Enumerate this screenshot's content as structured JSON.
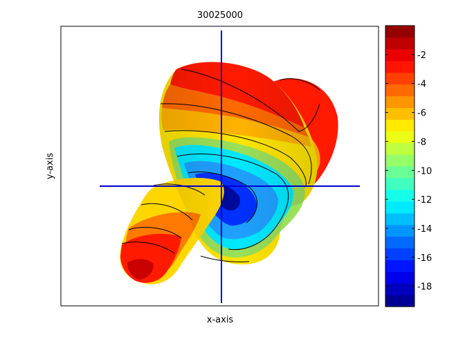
{
  "chart_data": {
    "type": "surface-3d",
    "title": "30025000",
    "xlabel": "x-axis",
    "ylabel": "y-axis",
    "grid": false,
    "colormap": "jet",
    "colorbar": {
      "placement": "right",
      "clim": [
        -19.4,
        0
      ],
      "levels": 24,
      "ticks": [
        -2,
        -4,
        -6,
        -8,
        -10,
        -12,
        -14,
        -16,
        -18
      ],
      "tick_labels": [
        "-2",
        "-4",
        "-6",
        "-8",
        "-10",
        "-12",
        "-14",
        "-16",
        "-18"
      ]
    },
    "contour_levels": [
      -2,
      -7,
      -10,
      -14
    ]
  }
}
